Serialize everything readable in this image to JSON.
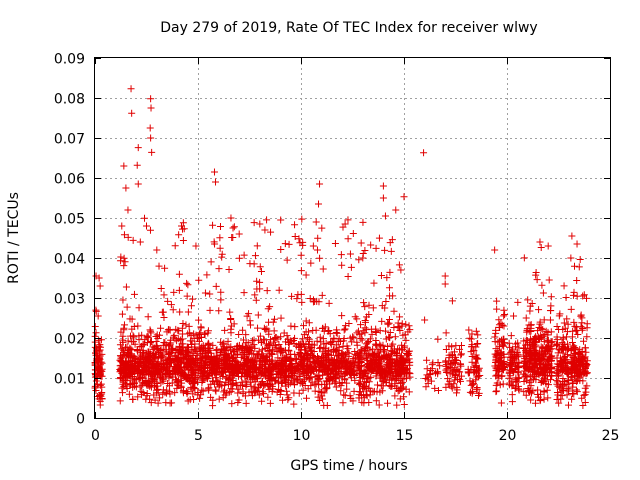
{
  "chart_data": {
    "type": "scatter",
    "title": "Day 279 of 2019, Rate Of TEC Index for receiver wlwy",
    "xlabel": "GPS time / hours",
    "ylabel": "ROTI / TECUs",
    "xlim": [
      0,
      24
    ],
    "ylim": [
      0,
      0.09
    ],
    "xticks": [
      0,
      5,
      10,
      15,
      20,
      25
    ],
    "xtick_labels": [
      "0",
      "5",
      "10",
      "15",
      "20",
      "25"
    ],
    "yticks": [
      0,
      0.01,
      0.02,
      0.03,
      0.04,
      0.05,
      0.06,
      0.07,
      0.08,
      0.09
    ],
    "ytick_labels": [
      "0",
      "0.01",
      "0.02",
      "0.03",
      "0.04",
      "0.05",
      "0.06",
      "0.07",
      "0.08",
      "0.09"
    ],
    "grid": true,
    "marker": "+",
    "color": "#e00000",
    "series": [
      {
        "name": "ROTI",
        "segments": [
          {
            "x0": 0.0,
            "x1": 0.35,
            "n": 90,
            "base": 0.01,
            "spread": 0.006,
            "peak": 0.036
          },
          {
            "x0": 1.2,
            "x1": 15.0,
            "n": 2600,
            "base": 0.011,
            "spread": 0.006,
            "peak": 0.05
          },
          {
            "x0": 15.0,
            "x1": 15.3,
            "n": 40,
            "base": 0.011,
            "spread": 0.005,
            "peak": 0.025
          },
          {
            "x0": 16.0,
            "x1": 16.8,
            "n": 25,
            "base": 0.01,
            "spread": 0.004,
            "peak": 0.02
          },
          {
            "x0": 17.0,
            "x1": 17.8,
            "n": 70,
            "base": 0.011,
            "spread": 0.005,
            "peak": 0.03
          },
          {
            "x0": 18.1,
            "x1": 18.7,
            "n": 60,
            "base": 0.011,
            "spread": 0.005,
            "peak": 0.024
          },
          {
            "x0": 19.4,
            "x1": 19.9,
            "n": 90,
            "base": 0.012,
            "spread": 0.006,
            "peak": 0.038
          },
          {
            "x0": 20.1,
            "x1": 20.6,
            "n": 80,
            "base": 0.011,
            "spread": 0.006,
            "peak": 0.032
          },
          {
            "x0": 20.8,
            "x1": 22.2,
            "n": 330,
            "base": 0.012,
            "spread": 0.007,
            "peak": 0.044
          },
          {
            "x0": 22.4,
            "x1": 23.0,
            "n": 120,
            "base": 0.011,
            "spread": 0.006,
            "peak": 0.036
          },
          {
            "x0": 23.1,
            "x1": 23.9,
            "n": 170,
            "base": 0.011,
            "spread": 0.006,
            "peak": 0.04
          }
        ],
        "highlights": [
          [
            1.75,
            0.0823
          ],
          [
            1.78,
            0.0762
          ],
          [
            2.7,
            0.0798
          ],
          [
            2.72,
            0.0775
          ],
          [
            2.68,
            0.0725
          ],
          [
            2.7,
            0.07
          ],
          [
            2.75,
            0.0664
          ],
          [
            2.1,
            0.0676
          ],
          [
            2.05,
            0.0632
          ],
          [
            1.4,
            0.063
          ],
          [
            1.5,
            0.0575
          ],
          [
            2.1,
            0.0585
          ],
          [
            15.95,
            0.0663
          ],
          [
            10.9,
            0.0585
          ],
          [
            10.85,
            0.0535
          ],
          [
            5.8,
            0.0615
          ],
          [
            5.85,
            0.059
          ],
          [
            14.0,
            0.058
          ],
          [
            14.0,
            0.055
          ],
          [
            15.0,
            0.0553
          ],
          [
            6.6,
            0.05
          ],
          [
            6.7,
            0.0475
          ],
          [
            8.0,
            0.0485
          ],
          [
            4.2,
            0.048
          ],
          [
            9.9,
            0.0448
          ],
          [
            9.95,
            0.0438
          ],
          [
            21.6,
            0.044
          ],
          [
            19.4,
            0.042
          ],
          [
            22.0,
            0.043
          ],
          [
            23.15,
            0.0455
          ],
          [
            23.4,
            0.0435
          ],
          [
            23.1,
            0.04
          ],
          [
            2.5,
            0.048
          ],
          [
            1.3,
            0.048
          ],
          [
            2.2,
            0.044
          ],
          [
            10.6,
            0.043
          ],
          [
            12.4,
            0.041
          ],
          [
            13.0,
            0.04
          ],
          [
            7.0,
            0.046
          ],
          [
            1.6,
            0.052
          ],
          [
            17.0,
            0.0355
          ],
          [
            17.0,
            0.0335
          ],
          [
            18.3,
            0.021
          ],
          [
            16.0,
            0.0245
          ],
          [
            0.05,
            0.0355
          ],
          [
            0.2,
            0.035
          ],
          [
            0.25,
            0.033
          ],
          [
            14.6,
            0.052
          ],
          [
            14.1,
            0.0505
          ],
          [
            10.8,
            0.042
          ],
          [
            4.9,
            0.043
          ],
          [
            3.0,
            0.042
          ]
        ]
      }
    ]
  }
}
